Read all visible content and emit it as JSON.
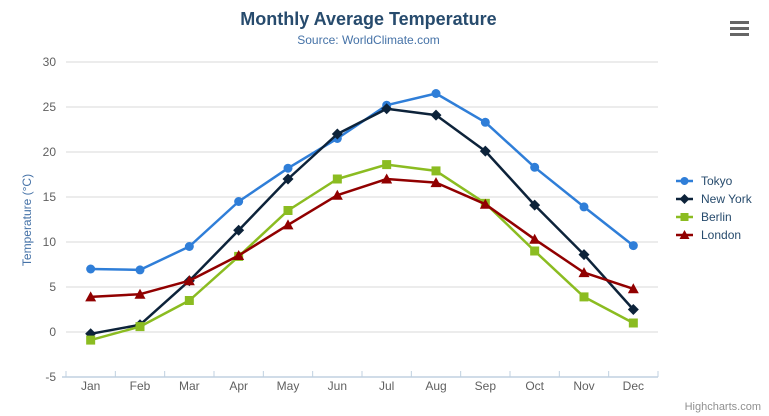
{
  "chart_data": {
    "type": "line",
    "title": "Monthly Average Temperature",
    "subtitle": "Source: WorldClimate.com",
    "categories": [
      "Jan",
      "Feb",
      "Mar",
      "Apr",
      "May",
      "Jun",
      "Jul",
      "Aug",
      "Sep",
      "Oct",
      "Nov",
      "Dec"
    ],
    "series": [
      {
        "name": "Tokyo",
        "color": "#2f7ed8",
        "marker": "circle",
        "values": [
          7.0,
          6.9,
          9.5,
          14.5,
          18.2,
          21.5,
          25.2,
          26.5,
          23.3,
          18.3,
          13.9,
          9.6
        ]
      },
      {
        "name": "New York",
        "color": "#0d233a",
        "marker": "diamond",
        "values": [
          -0.2,
          0.8,
          5.7,
          11.3,
          17.0,
          22.0,
          24.8,
          24.1,
          20.1,
          14.1,
          8.6,
          2.5
        ]
      },
      {
        "name": "Berlin",
        "color": "#8bbc21",
        "marker": "square",
        "values": [
          -0.9,
          0.6,
          3.5,
          8.4,
          13.5,
          17.0,
          18.6,
          17.9,
          14.3,
          9.0,
          3.9,
          1.0
        ]
      },
      {
        "name": "London",
        "color": "#910000",
        "marker": "triangle",
        "values": [
          3.9,
          4.2,
          5.7,
          8.5,
          11.9,
          15.2,
          17.0,
          16.6,
          14.2,
          10.3,
          6.6,
          4.8
        ]
      }
    ],
    "xlabel": "",
    "ylabel": "Temperature (°C)",
    "ylim": [
      -5,
      30
    ],
    "ytick_step": 5,
    "grid": true,
    "legend_position": "right"
  },
  "credits": {
    "label": "Highcharts.com"
  },
  "menu_button": {
    "icon_name": "hamburger-icon",
    "tooltip": "Chart context menu"
  },
  "colors": {
    "title": "#274b6d",
    "subtitle": "#4572a7",
    "axis_title": "#4572a7",
    "axis_labels": "#606060",
    "gridline": "#d8d8d8",
    "axis_line": "#c0d0e0",
    "legend_text": "#274b6d",
    "credits_text": "#909090",
    "menu_icon": "#666666",
    "background": "#ffffff"
  }
}
